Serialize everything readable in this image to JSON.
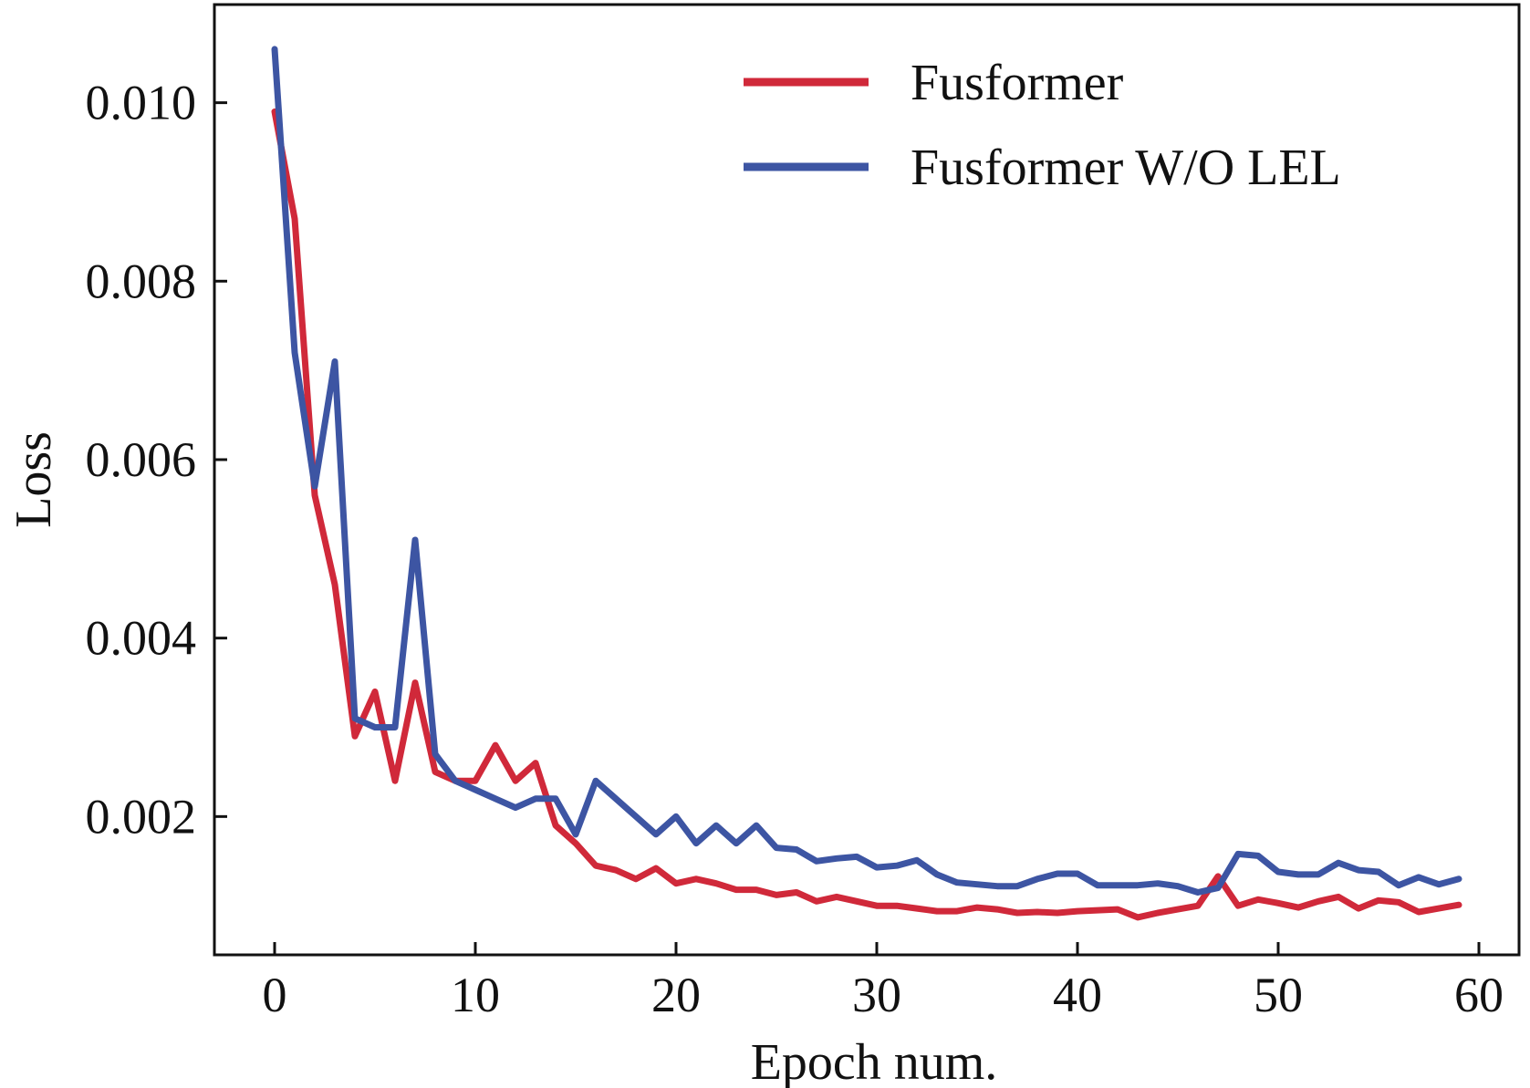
{
  "chart_data": {
    "type": "line",
    "title": "",
    "xlabel": "Epoch num.",
    "ylabel": "Loss",
    "xlim": [
      -3,
      62
    ],
    "ylim": [
      0.00045,
      0.0111
    ],
    "xticks": [
      0,
      10,
      20,
      30,
      40,
      50,
      60
    ],
    "xtick_labels": [
      "0",
      "10",
      "20",
      "30",
      "40",
      "50",
      "60"
    ],
    "yticks": [
      0.002,
      0.004,
      0.006,
      0.008,
      0.01
    ],
    "ytick_labels": [
      "0.002",
      "0.004",
      "0.006",
      "0.008",
      "0.010"
    ],
    "grid": false,
    "legend_position": "top-right",
    "x": [
      0,
      1,
      2,
      3,
      4,
      5,
      6,
      7,
      8,
      9,
      10,
      11,
      12,
      13,
      14,
      15,
      16,
      17,
      18,
      19,
      20,
      21,
      22,
      23,
      24,
      25,
      26,
      27,
      28,
      29,
      30,
      31,
      32,
      33,
      34,
      35,
      36,
      37,
      38,
      39,
      40,
      41,
      42,
      43,
      44,
      45,
      46,
      47,
      48,
      49,
      50,
      51,
      52,
      53,
      54,
      55,
      56,
      57,
      58,
      59
    ],
    "series": [
      {
        "name": "Fusformer",
        "color": "#d0293a",
        "values": [
          0.0099,
          0.0087,
          0.0056,
          0.0046,
          0.0029,
          0.0034,
          0.0024,
          0.0035,
          0.0025,
          0.0024,
          0.0024,
          0.0028,
          0.0024,
          0.0026,
          0.0019,
          0.0017,
          0.00145,
          0.0014,
          0.0013,
          0.00142,
          0.00125,
          0.0013,
          0.00125,
          0.00118,
          0.00118,
          0.00112,
          0.00115,
          0.00105,
          0.0011,
          0.00105,
          0.001,
          0.001,
          0.00097,
          0.00094,
          0.00094,
          0.00098,
          0.00096,
          0.00092,
          0.00093,
          0.00092,
          0.00094,
          0.00095,
          0.00096,
          0.00087,
          0.00092,
          0.00096,
          0.001,
          0.00133,
          0.001,
          0.00107,
          0.00103,
          0.00098,
          0.00105,
          0.0011,
          0.00097,
          0.00106,
          0.00104,
          0.00093,
          0.00097,
          0.00101
        ]
      },
      {
        "name": "Fusformer W/O LEL",
        "color": "#3d55a3",
        "values": [
          0.0106,
          0.0072,
          0.0057,
          0.0071,
          0.0031,
          0.003,
          0.003,
          0.0051,
          0.0027,
          0.0024,
          0.0023,
          0.0022,
          0.0021,
          0.0022,
          0.0022,
          0.0018,
          0.0024,
          0.0022,
          0.002,
          0.0018,
          0.002,
          0.0017,
          0.0019,
          0.0017,
          0.0019,
          0.00165,
          0.00163,
          0.0015,
          0.00153,
          0.00155,
          0.00143,
          0.00145,
          0.00151,
          0.00135,
          0.00126,
          0.00124,
          0.00122,
          0.00122,
          0.0013,
          0.00136,
          0.00136,
          0.00123,
          0.00123,
          0.00123,
          0.00125,
          0.00122,
          0.00115,
          0.0012,
          0.00158,
          0.00156,
          0.00138,
          0.00135,
          0.00135,
          0.00148,
          0.0014,
          0.00138,
          0.00123,
          0.00132,
          0.00124,
          0.0013
        ]
      }
    ]
  }
}
